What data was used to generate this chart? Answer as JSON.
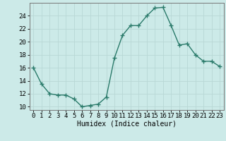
{
  "x": [
    0,
    1,
    2,
    3,
    4,
    5,
    6,
    7,
    8,
    9,
    10,
    11,
    12,
    13,
    14,
    15,
    16,
    17,
    18,
    19,
    20,
    21,
    22,
    23
  ],
  "y": [
    16.0,
    13.5,
    12.0,
    11.8,
    11.8,
    11.2,
    10.0,
    10.2,
    10.4,
    11.5,
    17.5,
    21.0,
    22.5,
    22.5,
    24.0,
    25.2,
    25.3,
    22.5,
    19.5,
    19.7,
    18.0,
    17.0,
    17.0,
    16.2
  ],
  "line_color": "#2a7a6a",
  "marker": "+",
  "marker_size": 4,
  "line_width": 1.0,
  "background_color": "#cceae8",
  "grid_color": "#b8d8d5",
  "xlabel": "Humidex (Indice chaleur)",
  "xlabel_fontsize": 7,
  "tick_fontsize": 6.5,
  "xlim": [
    -0.5,
    23.5
  ],
  "ylim": [
    9.5,
    26.0
  ],
  "yticks": [
    10,
    12,
    14,
    16,
    18,
    20,
    22,
    24
  ],
  "xticks": [
    0,
    1,
    2,
    3,
    4,
    5,
    6,
    7,
    8,
    9,
    10,
    11,
    12,
    13,
    14,
    15,
    16,
    17,
    18,
    19,
    20,
    21,
    22,
    23
  ]
}
